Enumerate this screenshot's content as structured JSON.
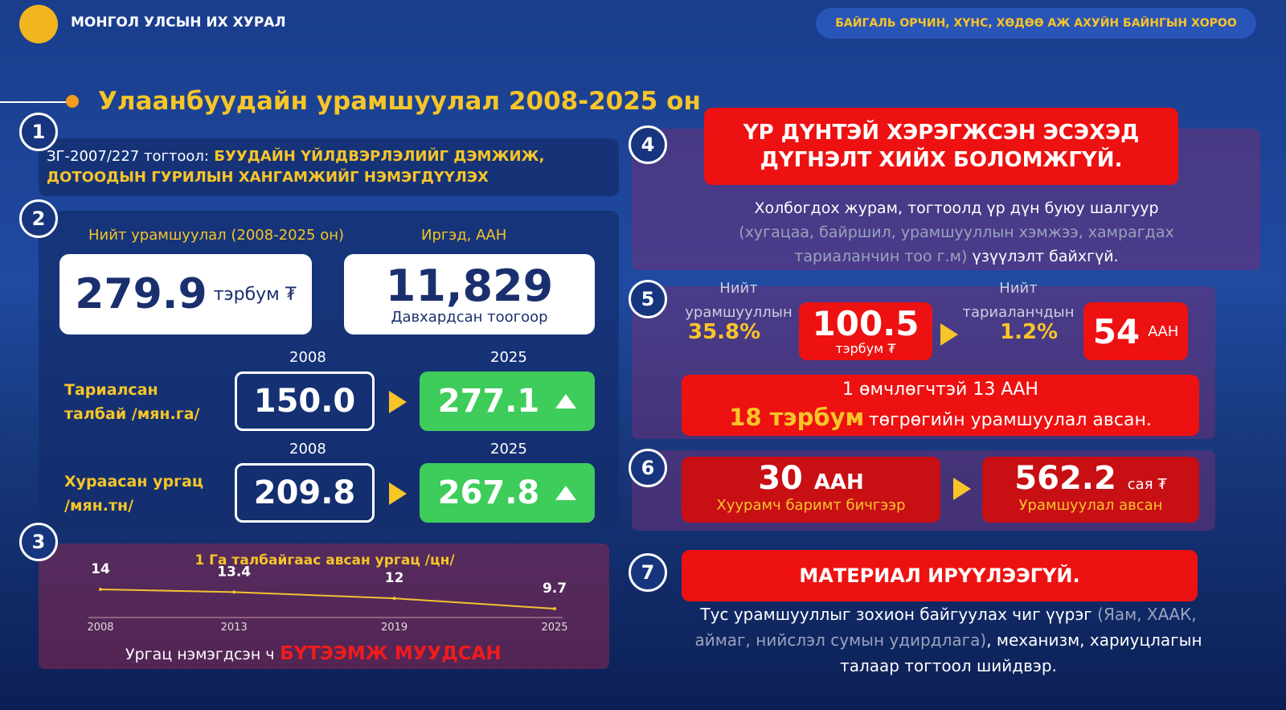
{
  "header": {
    "org": "МОНГОЛ УЛСЫН ИХ ХУРАЛ",
    "committee": "БАЙГАЛЬ ОРЧИН, ХҮНС, ХӨДӨӨ АЖ АХУЙН БАЙНГЫН ХОРОО"
  },
  "title": "Улаанбуудайн урамшуулал 2008-2025 он",
  "s1": {
    "number": "1",
    "prefix": "ЗГ-2007/227 тогтоол:",
    "lines": [
      "БУУДАЙН ҮЙЛДВЭРЛЭЛИЙГ ДЭМЖИЖ,",
      "ДОТООДЫН ГУРИЛЫН ХАНГАМЖИЙГ НЭМЭГДҮҮЛЭХ"
    ]
  },
  "s2": {
    "number": "2",
    "total_label": "Нийт урамшуулал (2008-2025 он)",
    "total_value": "279.9",
    "total_unit": "тэрбум ₮",
    "citizens_label": "Иргэд, ААН",
    "citizens_value": "11,829",
    "citizens_note": "Давхардсан тоогоор",
    "rows": [
      {
        "label": [
          "Тариалсан",
          "талбай /мян.га/"
        ],
        "year_from": "2008",
        "from": "150.0",
        "year_to": "2025",
        "to": "277.1"
      },
      {
        "label": [
          "Хураасан ургац",
          "/мян.тн/"
        ],
        "year_from": "2008",
        "from": "209.8",
        "year_to": "2025",
        "to": "267.8"
      }
    ]
  },
  "s3": {
    "number": "3",
    "chart_data": {
      "type": "line",
      "title": "1 Га талбайгаас авсан ургац /цн/",
      "x": [
        2008,
        2013,
        2019,
        2025
      ],
      "xlim": [
        2008,
        2025
      ],
      "values": [
        14,
        13.4,
        12,
        9.7
      ],
      "color": "#f2c230"
    },
    "footer": "Ургац нэмэгдсэн ч",
    "footer_emph": "БҮТЭЭМЖ МУУДСАН"
  },
  "s4": {
    "number": "4",
    "banner": [
      "ҮР ДҮНТЭЙ ХЭРЭГЖСЭН ЭСЭХЭД",
      "ДҮГНЭЛТ ХИЙХ БОЛОМЖГҮЙ."
    ],
    "line1": "Холбогдох журам, тогтоолд үр дүн буюу шалгуур",
    "line2": "(хугацаа, байршил, урамшууллын хэмжээ, хамрагдах",
    "line3_gray": "тариаланчин тоо г.м)",
    "line3": "үзүүлэлт байхгүй."
  },
  "s5": {
    "number": "5",
    "left": {
      "label": [
        "Нийт",
        "урамшууллын"
      ],
      "pct": "35.8%",
      "value": "100.5",
      "unit": "тэрбум ₮"
    },
    "right": {
      "label": [
        "Нийт",
        "тариаланчдын"
      ],
      "pct": "1.2%",
      "value": "54",
      "unit": "ААН"
    },
    "box_line1": "1 өмчлөгчтэй 13 ААН",
    "box_emph": "18 тэрбум",
    "box_rest": "төгрөгийн урамшуулал авсан."
  },
  "s6": {
    "number": "6",
    "left": {
      "value": "30",
      "unit": "ААН",
      "caption": "Хуурамч баримт бичгээр"
    },
    "right": {
      "value": "562.2",
      "unit": "сая ₮",
      "caption": "Урамшуулал авсан"
    }
  },
  "s7": {
    "number": "7",
    "banner": "МАТЕРИАЛ ИРҮҮЛЭЭГҮЙ.",
    "l1": "Тус урамшууллыг зохион байгуулах чиг үүрэг",
    "l1_gray": "(Яам, ХААК,",
    "l2_gray": "аймаг, нийслэл сумын удирдлага)",
    "l2": ", механизм, хариуцлагын",
    "l3": "талаар тогтоол шийдвэр."
  }
}
